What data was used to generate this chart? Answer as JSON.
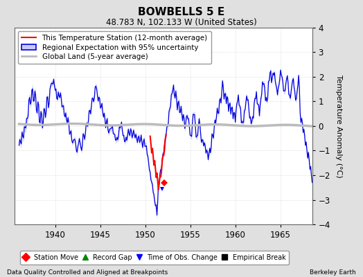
{
  "title": "BOWBELLS 5 E",
  "subtitle": "48.783 N, 102.133 W (United States)",
  "ylabel": "Temperature Anomaly (°C)",
  "xlim": [
    1935.5,
    1968.5
  ],
  "ylim": [
    -4,
    4
  ],
  "yticks": [
    -4,
    -3,
    -2,
    -1,
    0,
    1,
    2,
    3,
    4
  ],
  "xticks": [
    1940,
    1945,
    1950,
    1955,
    1960,
    1965
  ],
  "footer_left": "Data Quality Controlled and Aligned at Breakpoints",
  "footer_right": "Berkeley Earth",
  "legend_items": [
    {
      "label": "This Temperature Station (12-month average)",
      "color": "#FF0000",
      "lw": 1.5
    },
    {
      "label": "Regional Expectation with 95% uncertainty",
      "fill_color": "#C8C8FF",
      "line_color": "#0000DD",
      "lw": 1.2
    },
    {
      "label": "Global Land (5-year average)",
      "color": "#BBBBBB",
      "lw": 2.0
    }
  ],
  "marker_legend": [
    {
      "label": "Station Move",
      "color": "#FF0000",
      "marker": "D",
      "ms": 6
    },
    {
      "label": "Record Gap",
      "color": "#008800",
      "marker": "^",
      "ms": 6
    },
    {
      "label": "Time of Obs. Change",
      "color": "#0000FF",
      "marker": "v",
      "ms": 6
    },
    {
      "label": "Empirical Break",
      "color": "#000000",
      "marker": "s",
      "ms": 6
    }
  ],
  "bg_color": "#E0E0E0",
  "plot_bg": "#FFFFFF",
  "regional_fill_color": "#C8C8FF",
  "regional_line_color": "#0000DD",
  "station_line_color": "#FF0000",
  "global_line_color": "#BBBBBB",
  "grid_color": "#CCCCCC"
}
